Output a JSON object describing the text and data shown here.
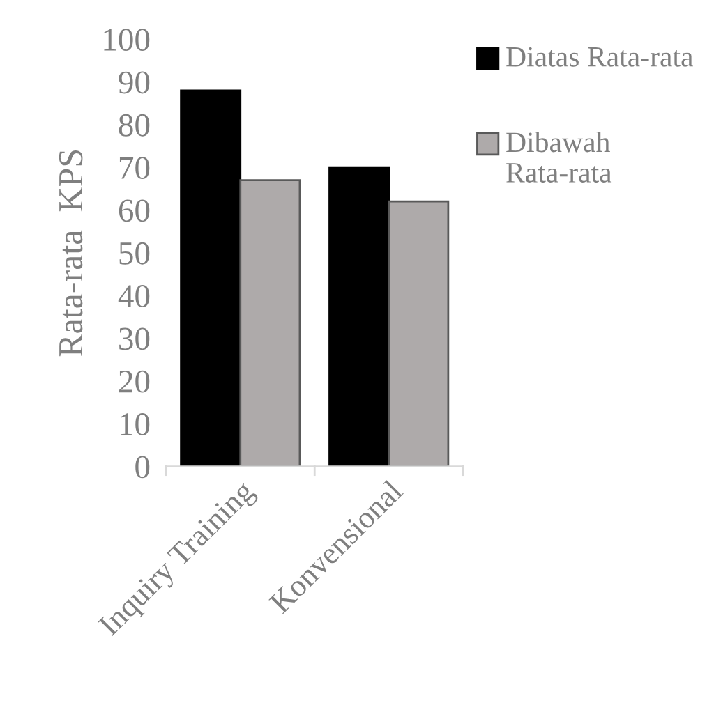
{
  "chart_data": {
    "type": "bar",
    "ylabel": "Rata-rata  KPS",
    "categories": [
      "Inquiry Training",
      "Konvensional"
    ],
    "series": [
      {
        "name": "Diatas Rata-rata",
        "color": "#000000",
        "values": [
          88,
          70
        ]
      },
      {
        "name": "Dibawah Rata-rata",
        "color": "#aeaaaa",
        "values": [
          67,
          62
        ]
      }
    ],
    "ylim": [
      0,
      100
    ],
    "yticks": [
      0,
      10,
      20,
      30,
      40,
      50,
      60,
      70,
      80,
      90,
      100
    ],
    "grid": false,
    "legend": "right"
  }
}
